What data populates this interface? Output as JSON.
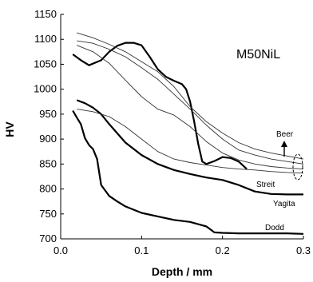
{
  "chart_data": {
    "type": "line",
    "title": "M50NiL",
    "xlabel": "Depth / mm",
    "ylabel": "HV",
    "xlim": [
      0,
      0.3
    ],
    "ylim": [
      700,
      1150
    ],
    "xticks": [
      "0.0",
      "0.1",
      "0.2",
      "0.3"
    ],
    "yticks": [
      "700",
      "750",
      "800",
      "850",
      "900",
      "950",
      "1000",
      "1050",
      "1100",
      "1150"
    ],
    "grid": false,
    "legend": "none",
    "series": [
      {
        "name": "Streit",
        "style": "thick",
        "x": [
          0.015,
          0.025,
          0.035,
          0.05,
          0.06,
          0.07,
          0.08,
          0.09,
          0.1,
          0.11,
          0.12,
          0.13,
          0.14,
          0.15,
          0.155,
          0.16,
          0.165,
          0.17,
          0.175,
          0.18,
          0.19,
          0.2,
          0.21,
          0.22,
          0.23
        ],
        "y": [
          1070,
          1058,
          1048,
          1058,
          1075,
          1087,
          1093,
          1093,
          1088,
          1065,
          1040,
          1025,
          1017,
          1010,
          1000,
          975,
          935,
          890,
          855,
          850,
          856,
          864,
          862,
          855,
          840
        ]
      },
      {
        "name": "Yagita",
        "style": "thick",
        "x": [
          0.02,
          0.03,
          0.04,
          0.05,
          0.06,
          0.08,
          0.1,
          0.12,
          0.14,
          0.16,
          0.18,
          0.2,
          0.22,
          0.24,
          0.26,
          0.28,
          0.3
        ],
        "y": [
          978,
          972,
          963,
          950,
          930,
          893,
          868,
          850,
          838,
          830,
          823,
          818,
          808,
          795,
          790,
          789,
          789
        ]
      },
      {
        "name": "Dodd",
        "style": "thick",
        "x": [
          0.015,
          0.02,
          0.025,
          0.03,
          0.035,
          0.04,
          0.045,
          0.05,
          0.06,
          0.07,
          0.08,
          0.1,
          0.12,
          0.14,
          0.16,
          0.18,
          0.19,
          0.2,
          0.22,
          0.24,
          0.26,
          0.28,
          0.3
        ],
        "y": [
          957,
          943,
          930,
          902,
          888,
          880,
          860,
          808,
          786,
          775,
          765,
          752,
          745,
          738,
          734,
          725,
          713,
          712,
          711,
          711,
          711,
          711,
          710
        ]
      },
      {
        "name": "Beer",
        "style": "thin",
        "x": [
          0.02,
          0.04,
          0.06,
          0.08,
          0.1,
          0.12,
          0.14,
          0.16,
          0.18,
          0.2,
          0.22,
          0.24,
          0.26,
          0.28,
          0.3
        ],
        "y": [
          1113,
          1103,
          1090,
          1075,
          1055,
          1035,
          1005,
          965,
          935,
          912,
          893,
          880,
          872,
          866,
          860
        ]
      },
      {
        "name": "",
        "style": "thin",
        "x": [
          0.02,
          0.04,
          0.06,
          0.08,
          0.1,
          0.12,
          0.14,
          0.16,
          0.18,
          0.2,
          0.22,
          0.24,
          0.26,
          0.28,
          0.3
        ],
        "y": [
          1097,
          1092,
          1080,
          1065,
          1043,
          1020,
          990,
          960,
          928,
          900,
          878,
          868,
          860,
          855,
          850
        ]
      },
      {
        "name": "",
        "style": "thin",
        "x": [
          0.02,
          0.04,
          0.06,
          0.08,
          0.1,
          0.12,
          0.14,
          0.16,
          0.18,
          0.2,
          0.22,
          0.24,
          0.26,
          0.28,
          0.3
        ],
        "y": [
          1088,
          1075,
          1052,
          1018,
          985,
          960,
          948,
          925,
          895,
          872,
          858,
          850,
          845,
          842,
          840
        ]
      },
      {
        "name": "",
        "style": "thin",
        "x": [
          0.02,
          0.04,
          0.06,
          0.08,
          0.1,
          0.12,
          0.14,
          0.16,
          0.18,
          0.2,
          0.22,
          0.24,
          0.26,
          0.28,
          0.3
        ],
        "y": [
          960,
          955,
          945,
          925,
          900,
          875,
          860,
          853,
          848,
          843,
          840,
          838,
          835,
          833,
          832
        ]
      }
    ],
    "annotations": [
      "Beer",
      "Streit",
      "Yagita",
      "Dodd"
    ]
  }
}
